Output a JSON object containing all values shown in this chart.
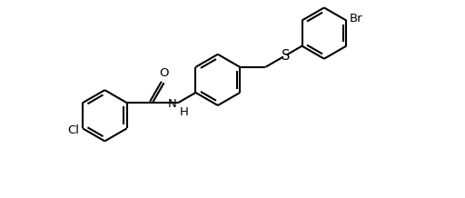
{
  "bg_color": "#ffffff",
  "line_color": "#000000",
  "lw": 1.5,
  "font_size": 9.5,
  "figsize": [
    5.12,
    2.18
  ],
  "dpi": 100,
  "xlim": [
    -1.5,
    11.5
  ],
  "ylim": [
    -3.2,
    4.5
  ]
}
